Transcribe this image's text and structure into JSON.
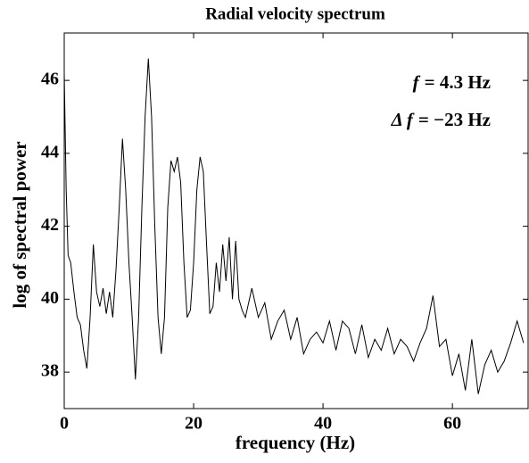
{
  "chart_data": {
    "type": "line",
    "title": "Radial velocity spectrum",
    "xlabel": "frequency (Hz)",
    "ylabel": "log of spectral power",
    "annotations": [
      {
        "symbol": "f",
        "text": "= 4.3 Hz"
      },
      {
        "symbol": "Δ f",
        "text": "= −23 Hz"
      }
    ],
    "x": [
      0,
      0.3,
      0.6,
      1,
      1.5,
      2,
      2.5,
      3,
      3.5,
      4,
      4.5,
      5,
      5.5,
      6,
      6.5,
      7,
      7.5,
      8,
      8.5,
      9,
      9.5,
      10,
      10.5,
      11,
      11.5,
      12,
      12.5,
      13,
      13.5,
      14,
      14.5,
      15,
      15.5,
      16,
      16.5,
      17,
      17.5,
      18,
      18.5,
      19,
      19.5,
      20,
      20.5,
      21,
      21.5,
      22,
      22.5,
      23,
      23.5,
      24,
      24.5,
      25,
      25.5,
      26,
      26.5,
      27,
      27.5,
      28,
      29,
      30,
      31,
      32,
      33,
      34,
      35,
      36,
      37,
      38,
      39,
      40,
      41,
      42,
      43,
      44,
      45,
      46,
      47,
      48,
      49,
      50,
      51,
      52,
      53,
      54,
      55,
      56,
      57,
      58,
      59,
      60,
      61,
      62,
      63,
      64,
      65,
      66,
      67,
      68,
      69,
      70,
      71
    ],
    "series": [
      {
        "color": "#000000",
        "values": [
          46.2,
          43,
          41.2,
          41,
          40.2,
          39.5,
          39.3,
          38.6,
          38.1,
          39.5,
          41.5,
          40.2,
          39.8,
          40.3,
          39.6,
          40.2,
          39.5,
          40.8,
          42.5,
          44.4,
          43,
          41,
          39.5,
          37.8,
          39.5,
          42.5,
          45,
          46.6,
          45,
          42,
          39.5,
          38.5,
          39.5,
          42.5,
          43.8,
          43.5,
          43.9,
          43.2,
          41,
          39.5,
          39.7,
          41,
          43,
          43.9,
          43.5,
          41.5,
          39.6,
          39.8,
          41,
          40.2,
          41.5,
          40.5,
          41.7,
          40,
          41.6,
          40,
          39.7,
          39.5,
          40.3,
          39.5,
          39.9,
          38.9,
          39.4,
          39.7,
          38.9,
          39.5,
          38.5,
          38.9,
          39.1,
          38.8,
          39.4,
          38.6,
          39.4,
          39.2,
          38.5,
          39.3,
          38.4,
          38.9,
          38.6,
          39.2,
          38.5,
          38.9,
          38.7,
          38.3,
          38.8,
          39.2,
          40.1,
          38.7,
          38.9,
          37.9,
          38.5,
          37.5,
          38.9,
          37.4,
          38.2,
          38.6,
          38,
          38.3,
          38.8,
          39.4,
          38.8
        ]
      }
    ],
    "xlim": [
      0,
      71.7
    ],
    "xticks": [
      0,
      20,
      40,
      60
    ],
    "ylim": [
      37,
      47.3
    ],
    "yticks": [
      38,
      40,
      42,
      44,
      46
    ]
  }
}
